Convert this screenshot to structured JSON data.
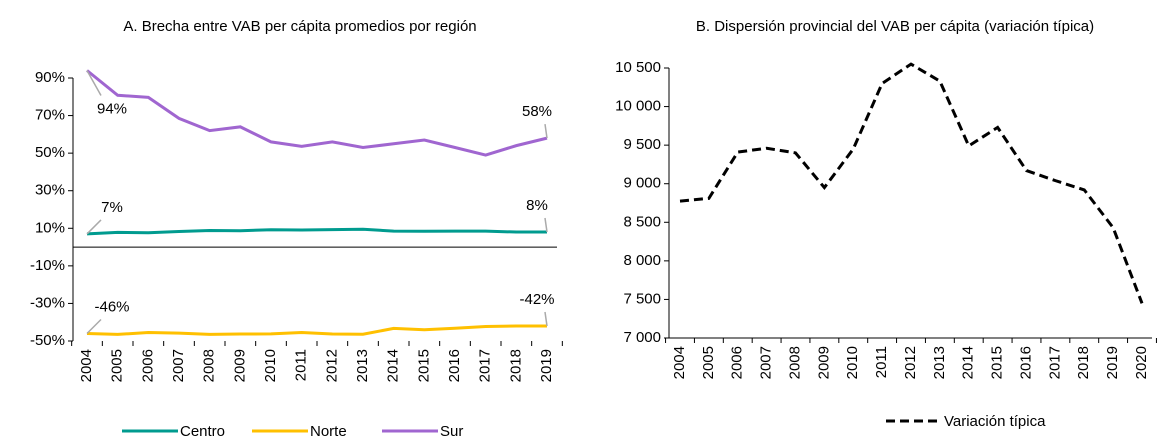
{
  "chart_data": [
    {
      "type": "line",
      "title": "A. Brecha entre VAB per cápita promedios por región",
      "x": [
        "2004",
        "2005",
        "2006",
        "2007",
        "2008",
        "2009",
        "2010",
        "2011",
        "2012",
        "2013",
        "2014",
        "2015",
        "2016",
        "2017",
        "2018",
        "2019"
      ],
      "ylim": [
        -50,
        90
      ],
      "yticks": [
        {
          "value": -50,
          "label": "-50%"
        },
        {
          "value": -30,
          "label": "-30%"
        },
        {
          "value": -10,
          "label": "-10%"
        },
        {
          "value": 10,
          "label": "10%"
        },
        {
          "value": 30,
          "label": "30%"
        },
        {
          "value": 50,
          "label": "50%"
        },
        {
          "value": 70,
          "label": "70%"
        },
        {
          "value": 90,
          "label": "90%"
        }
      ],
      "legend": "bottom",
      "series": [
        {
          "name": "Centro",
          "color": "#009b8f",
          "values": [
            7,
            7.8,
            7.6,
            8.3,
            8.8,
            8.7,
            9.2,
            9.1,
            9.3,
            9.5,
            8.5,
            8.4,
            8.5,
            8.5,
            8,
            8
          ],
          "value_labels": [
            "7%",
            null,
            null,
            null,
            null,
            null,
            null,
            null,
            null,
            null,
            null,
            null,
            null,
            null,
            null,
            "8%"
          ]
        },
        {
          "name": "Norte",
          "color": "#ffc000",
          "values": [
            -46,
            -46.5,
            -45.5,
            -45.8,
            -46.5,
            -46.3,
            -46.2,
            -45.5,
            -46.3,
            -46.4,
            -43.3,
            -44,
            -43.2,
            -42.3,
            -42,
            -42
          ],
          "value_labels": [
            "-46%",
            null,
            null,
            null,
            null,
            null,
            null,
            null,
            null,
            null,
            null,
            null,
            null,
            null,
            null,
            "-42%"
          ]
        },
        {
          "name": "Sur",
          "color": "#a066d0",
          "values": [
            94,
            80.8,
            79.7,
            68.5,
            62,
            64,
            56,
            53.6,
            56,
            53,
            55,
            57,
            53,
            49,
            54,
            58
          ],
          "value_labels": [
            "94%",
            null,
            null,
            null,
            null,
            null,
            null,
            null,
            null,
            null,
            null,
            null,
            null,
            null,
            null,
            "58%"
          ]
        }
      ]
    },
    {
      "type": "line",
      "title": "B. Dispersión provincial del VAB per cápita (variación típica)",
      "x": [
        "2004",
        "2005",
        "2006",
        "2007",
        "2008",
        "2009",
        "2010",
        "2011",
        "2012",
        "2013",
        "2014",
        "2015",
        "2016",
        "2017",
        "2018",
        "2019",
        "2020"
      ],
      "ylim": [
        7000,
        10500
      ],
      "yticks": [
        {
          "value": 7000,
          "label": "7 000"
        },
        {
          "value": 7500,
          "label": "7 500"
        },
        {
          "value": 8000,
          "label": "8 000"
        },
        {
          "value": 8500,
          "label": "8 500"
        },
        {
          "value": 9000,
          "label": "9 000"
        },
        {
          "value": 9500,
          "label": "9 500"
        },
        {
          "value": 10000,
          "label": "10 000"
        },
        {
          "value": 10500,
          "label": "10 500"
        }
      ],
      "legend": "bottom",
      "series": [
        {
          "name": "Variación típica",
          "color": "#000000",
          "dashed": true,
          "values": [
            8775,
            8810,
            9410,
            9460,
            9400,
            8950,
            9450,
            10300,
            10550,
            10330,
            9490,
            9730,
            9170,
            9040,
            8920,
            8430,
            7450
          ]
        }
      ]
    }
  ]
}
